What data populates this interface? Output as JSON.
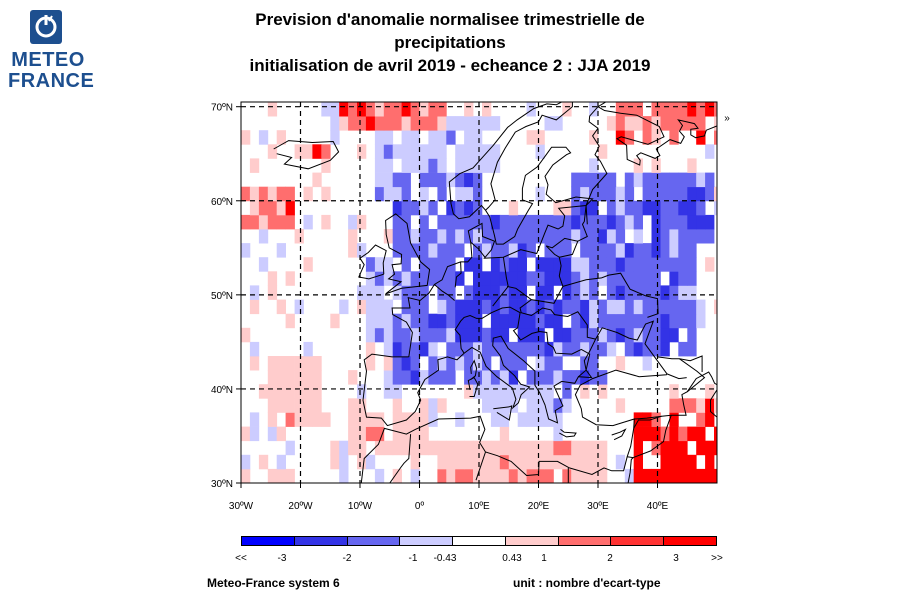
{
  "logo": {
    "line1": "METEO",
    "line2": "FRANCE"
  },
  "title": {
    "line1": "Prevision d'anomalie normalisee trimestrielle de",
    "line2": "precipitations",
    "line3": "initialisation de avril 2019  -  echeance 2 : JJA 2019"
  },
  "map": {
    "lon_range": [
      -30,
      50
    ],
    "lat_range": [
      30,
      70.5
    ],
    "lon_ticks": [
      {
        "lon": -30,
        "label": "30ºW"
      },
      {
        "lon": -20,
        "label": "20ºW"
      },
      {
        "lon": -10,
        "label": "10ºW"
      },
      {
        "lon": 0,
        "label": "0º"
      },
      {
        "lon": 10,
        "label": "10ºE"
      },
      {
        "lon": 20,
        "label": "20ºE"
      },
      {
        "lon": 30,
        "label": "30ºE"
      },
      {
        "lon": 40,
        "label": "40ºE"
      }
    ],
    "lat_ticks": [
      {
        "lat": 30,
        "label": "30ºN"
      },
      {
        "lat": 40,
        "label": "40ºN"
      },
      {
        "lat": 50,
        "label": "50ºN"
      },
      {
        "lat": 60,
        "label": "60ºN"
      },
      {
        "lat": 70,
        "label": "70ºN"
      }
    ],
    "blue_regions": [
      {
        "lon": [
          -10,
          -2
        ],
        "lat": [
          44,
          53
        ],
        "level": 1
      },
      {
        "lon": [
          -5,
          30
        ],
        "lat": [
          40,
          55
        ],
        "level": 2
      },
      {
        "lon": [
          2,
          45
        ],
        "lat": [
          49,
          58
        ],
        "level": 2
      },
      {
        "lon": [
          5,
          25
        ],
        "lat": [
          45,
          53
        ],
        "level": 3
      },
      {
        "lon": [
          25,
          48
        ],
        "lat": [
          55,
          62
        ],
        "level": 2
      },
      {
        "lon": [
          -5,
          10
        ],
        "lat": [
          55,
          62
        ],
        "level": 2
      },
      {
        "lon": [
          0,
          12
        ],
        "lat": [
          62,
          68
        ],
        "level": 1
      },
      {
        "lon": [
          -8,
          0
        ],
        "lat": [
          60,
          66
        ],
        "level": 1
      },
      {
        "lon": [
          25,
          45
        ],
        "lat": [
          43,
          50
        ],
        "level": 2
      },
      {
        "lon": [
          10,
          25
        ],
        "lat": [
          36,
          42
        ],
        "level": 1
      }
    ],
    "red_regions": [
      {
        "lon": [
          -14,
          3
        ],
        "lat": [
          67,
          70.5
        ],
        "level": 2
      },
      {
        "lon": [
          32,
          50
        ],
        "lat": [
          65,
          70.5
        ],
        "level": 2
      },
      {
        "lon": [
          -30,
          -22
        ],
        "lat": [
          57,
          61
        ],
        "level": 2
      },
      {
        "lon": [
          -19,
          -16
        ],
        "lat": [
          64.5,
          65.5
        ],
        "level": 3
      },
      {
        "lon": [
          35,
          50
        ],
        "lat": [
          30,
          36
        ],
        "level": 3
      },
      {
        "lon": [
          40,
          50
        ],
        "lat": [
          33,
          38
        ],
        "level": 2
      },
      {
        "lon": [
          2,
          30
        ],
        "lat": [
          30,
          34
        ],
        "level": 1
      },
      {
        "lon": [
          -12,
          0
        ],
        "lat": [
          33,
          36
        ],
        "level": 1
      },
      {
        "lon": [
          -26,
          -18
        ],
        "lat": [
          36,
          42
        ],
        "level": 1
      }
    ]
  },
  "colorbar": {
    "colors": [
      "#0000ff",
      "#3333e6",
      "#6666f0",
      "#ccccff",
      "#ffffff",
      "#ffcccc",
      "#ff6e6e",
      "#ff3333",
      "#ff0000"
    ],
    "labels": [
      {
        "text": "<<",
        "x": 241
      },
      {
        "text": "-3",
        "x": 282
      },
      {
        "text": "-2",
        "x": 347
      },
      {
        "text": "-1",
        "x": 413
      },
      {
        "text": "-0.43",
        "x": 445
      },
      {
        "text": "0.43",
        "x": 512
      },
      {
        "text": "1",
        "x": 544
      },
      {
        "text": "2",
        "x": 610
      },
      {
        "text": "3",
        "x": 676
      },
      {
        "text": ">>",
        "x": 717
      }
    ]
  },
  "footer": {
    "left": "Meteo-France system 6",
    "right": "unit : nombre d'ecart-type"
  },
  "colors": {
    "blue1": "#ccccff",
    "blue2": "#6666f0",
    "blue3": "#3333e6",
    "red1": "#ffcccc",
    "red2": "#ff6e6e",
    "red3": "#ff0000"
  }
}
